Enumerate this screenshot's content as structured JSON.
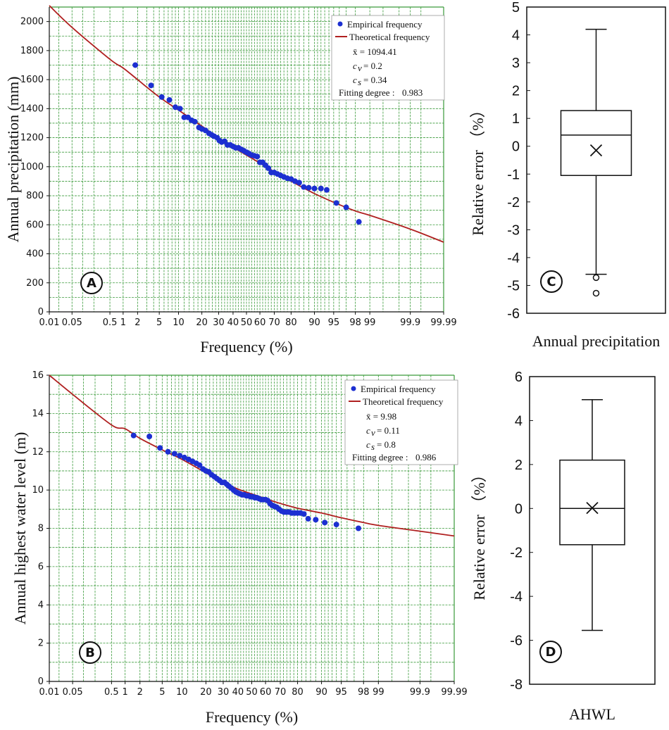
{
  "colors": {
    "grid": "#3a9a3a",
    "curve": "#b02020",
    "points": "#1c2fd1",
    "frame": "#111111"
  },
  "chart_data": [
    {
      "id": "A",
      "type": "scatter",
      "badge": "A",
      "xlabel": "Frequency (%)",
      "ylabel": "Annual precipitation (mm)",
      "x_scale": "normal-probability",
      "x_ticks": [
        0.01,
        0.05,
        0.5,
        1,
        2,
        5,
        10,
        20,
        30,
        40,
        50,
        60,
        70,
        80,
        90,
        95,
        98,
        99,
        99.9,
        99.99
      ],
      "x_tick_labels": [
        "0.01",
        "0.05",
        "0.5",
        "1",
        "2",
        "5",
        "10",
        "20",
        "30",
        "40",
        "50",
        "60",
        "70",
        "80",
        "90",
        "95",
        "98",
        "99",
        "99.9",
        "99.99"
      ],
      "ylim": [
        0,
        2100
      ],
      "y_ticks": [
        0,
        200,
        400,
        600,
        800,
        1000,
        1200,
        1400,
        1600,
        1800,
        2000
      ],
      "y_tick_labels": [
        "0",
        "200",
        "400",
        "600",
        "800",
        "1000",
        "1200",
        "1400",
        "1600",
        "1800",
        "2000"
      ],
      "legend": {
        "empirical": "Empirical frequency",
        "theoretical": "Theoretical frequency",
        "mean": "x̄ = 1094.41",
        "cv_name": "c",
        "cv_sub": "v",
        "cv_value": "= 0.2",
        "cs_name": "c",
        "cs_sub": "s",
        "cs_value": "= 0.34",
        "fit_label": "Fitting degree :",
        "fit_value": "0.983"
      },
      "series": [
        {
          "name": "Theoretical frequency",
          "kind": "line",
          "points": [
            [
              0.01,
              2110
            ],
            [
              0.05,
              1960
            ],
            [
              0.5,
              1740
            ],
            [
              1,
              1680
            ],
            [
              2,
              1600
            ],
            [
              5,
              1480
            ],
            [
              10,
              1390
            ],
            [
              20,
              1280
            ],
            [
              30,
              1200
            ],
            [
              40,
              1135
            ],
            [
              50,
              1080
            ],
            [
              60,
              1025
            ],
            [
              70,
              965
            ],
            [
              80,
              900
            ],
            [
              90,
              815
            ],
            [
              95,
              755
            ],
            [
              98,
              695
            ],
            [
              99,
              665
            ],
            [
              99.9,
              570
            ],
            [
              99.99,
              480
            ]
          ]
        },
        {
          "name": "Empirical frequency",
          "kind": "points",
          "points": [
            [
              1.8,
              1700
            ],
            [
              3.6,
              1560
            ],
            [
              5.5,
              1480
            ],
            [
              7.3,
              1460
            ],
            [
              9,
              1410
            ],
            [
              10.5,
              1400
            ],
            [
              12,
              1340
            ],
            [
              13.5,
              1340
            ],
            [
              15,
              1320
            ],
            [
              16.5,
              1310
            ],
            [
              18.5,
              1270
            ],
            [
              20,
              1260
            ],
            [
              22,
              1250
            ],
            [
              24,
              1230
            ],
            [
              25.5,
              1220
            ],
            [
              27,
              1210
            ],
            [
              29,
              1200
            ],
            [
              30.5,
              1180
            ],
            [
              32,
              1170
            ],
            [
              34,
              1175
            ],
            [
              36,
              1150
            ],
            [
              38,
              1150
            ],
            [
              40,
              1140
            ],
            [
              42,
              1130
            ],
            [
              44,
              1130
            ],
            [
              46,
              1120
            ],
            [
              48,
              1110
            ],
            [
              50,
              1100
            ],
            [
              52,
              1090
            ],
            [
              54,
              1080
            ],
            [
              56,
              1075
            ],
            [
              58,
              1070
            ],
            [
              60,
              1030
            ],
            [
              62,
              1030
            ],
            [
              64,
              1010
            ],
            [
              66,
              990
            ],
            [
              68,
              960
            ],
            [
              70,
              960
            ],
            [
              72,
              950
            ],
            [
              74,
              940
            ],
            [
              76,
              930
            ],
            [
              78,
              920
            ],
            [
              80,
              915
            ],
            [
              82,
              900
            ],
            [
              84,
              890
            ],
            [
              86,
              860
            ],
            [
              88,
              855
            ],
            [
              90,
              850
            ],
            [
              92,
              850
            ],
            [
              93.5,
              840
            ],
            [
              95.5,
              750
            ],
            [
              97,
              720
            ],
            [
              98.3,
              620
            ]
          ]
        }
      ]
    },
    {
      "id": "B",
      "type": "scatter",
      "badge": "B",
      "xlabel": "Frequency (%)",
      "ylabel": "Annual highest water level (m)",
      "x_scale": "normal-probability",
      "x_ticks": [
        0.01,
        0.05,
        0.5,
        1,
        2,
        5,
        10,
        20,
        30,
        40,
        50,
        60,
        70,
        80,
        90,
        95,
        98,
        99,
        99.9,
        99.99
      ],
      "x_tick_labels": [
        "0.01",
        "0.05",
        "0.5",
        "1",
        "2",
        "5",
        "10",
        "20",
        "30",
        "40",
        "50",
        "60",
        "70",
        "80",
        "90",
        "95",
        "98",
        "99",
        "99.9",
        "99.99"
      ],
      "ylim": [
        0,
        16
      ],
      "y_ticks": [
        0,
        2,
        4,
        6,
        8,
        10,
        12,
        14,
        16
      ],
      "y_tick_labels": [
        "0",
        "2",
        "4",
        "6",
        "8",
        "10",
        "12",
        "14",
        "16"
      ],
      "legend": {
        "empirical": "Empirical frequency",
        "theoretical": "Theoretical frequency",
        "mean": "x̄ =  9.98",
        "cv_name": "c",
        "cv_sub": "v",
        "cv_value": "= 0.11",
        "cs_name": "c",
        "cs_sub": "s",
        "cs_value": "= 0.8",
        "fit_label": "Fitting degree :",
        "fit_value": "0.986"
      },
      "series": [
        {
          "name": "Theoretical frequency",
          "kind": "line",
          "points": [
            [
              0.01,
              16.0
            ],
            [
              0.05,
              15.0
            ],
            [
              0.5,
              13.4
            ],
            [
              1,
              13.2
            ],
            [
              2,
              12.7
            ],
            [
              5,
              12.1
            ],
            [
              10,
              11.6
            ],
            [
              20,
              10.9
            ],
            [
              30,
              10.4
            ],
            [
              40,
              10.05
            ],
            [
              50,
              9.8
            ],
            [
              60,
              9.55
            ],
            [
              70,
              9.3
            ],
            [
              80,
              9.05
            ],
            [
              90,
              8.8
            ],
            [
              95,
              8.55
            ],
            [
              98,
              8.3
            ],
            [
              99,
              8.15
            ],
            [
              99.9,
              7.85
            ],
            [
              99.99,
              7.6
            ]
          ]
        },
        {
          "name": "Empirical frequency",
          "kind": "points",
          "points": [
            [
              1.5,
              12.85
            ],
            [
              3.0,
              12.8
            ],
            [
              4.6,
              12.2
            ],
            [
              6.2,
              12.0
            ],
            [
              7.8,
              11.9
            ],
            [
              9.3,
              11.8
            ],
            [
              10.8,
              11.7
            ],
            [
              12.3,
              11.6
            ],
            [
              13.8,
              11.5
            ],
            [
              15.4,
              11.4
            ],
            [
              16.9,
              11.3
            ],
            [
              18.5,
              11.1
            ],
            [
              20,
              11.0
            ],
            [
              21.5,
              10.95
            ],
            [
              23,
              10.8
            ],
            [
              24.6,
              10.7
            ],
            [
              26.1,
              10.6
            ],
            [
              27.7,
              10.5
            ],
            [
              29.2,
              10.4
            ],
            [
              30.8,
              10.4
            ],
            [
              32.3,
              10.3
            ],
            [
              33.8,
              10.2
            ],
            [
              35.4,
              10.1
            ],
            [
              36.9,
              10.0
            ],
            [
              38.5,
              9.9
            ],
            [
              40,
              9.85
            ],
            [
              41.5,
              9.8
            ],
            [
              43.1,
              9.75
            ],
            [
              44.6,
              9.75
            ],
            [
              46.2,
              9.7
            ],
            [
              47.7,
              9.7
            ],
            [
              49.2,
              9.65
            ],
            [
              50.8,
              9.65
            ],
            [
              52.3,
              9.6
            ],
            [
              53.8,
              9.6
            ],
            [
              55.4,
              9.55
            ],
            [
              56.9,
              9.5
            ],
            [
              58.5,
              9.5
            ],
            [
              60,
              9.5
            ],
            [
              61.5,
              9.45
            ],
            [
              63.1,
              9.3
            ],
            [
              64.6,
              9.2
            ],
            [
              66.2,
              9.15
            ],
            [
              67.7,
              9.1
            ],
            [
              69.2,
              9.0
            ],
            [
              70.8,
              8.9
            ],
            [
              72.3,
              8.85
            ],
            [
              73.8,
              8.85
            ],
            [
              75.4,
              8.85
            ],
            [
              76.9,
              8.8
            ],
            [
              78.5,
              8.8
            ],
            [
              80,
              8.8
            ],
            [
              81.5,
              8.8
            ],
            [
              83.1,
              8.75
            ],
            [
              85,
              8.5
            ],
            [
              88,
              8.45
            ],
            [
              91,
              8.3
            ],
            [
              94,
              8.2
            ],
            [
              97.5,
              8.0
            ]
          ]
        }
      ]
    },
    {
      "id": "C",
      "type": "box",
      "badge": "C",
      "xlabel": "Annual precipitation",
      "ylabel": "Relative error  （%）",
      "ylim": [
        -6,
        5
      ],
      "y_ticks": [
        -6,
        -5,
        -4,
        -3,
        -2,
        -1,
        0,
        1,
        2,
        3,
        4,
        5
      ],
      "y_tick_labels": [
        "-6",
        "-5",
        "-4",
        "-3",
        "-2",
        "-1",
        "0",
        "1",
        "2",
        "3",
        "4",
        "5"
      ],
      "box": {
        "min": -4.6,
        "q1": -1.05,
        "median": 0.4,
        "q3": 1.28,
        "max": 4.2,
        "mean": -0.15,
        "outliers": [
          -4.72,
          -5.28
        ]
      }
    },
    {
      "id": "D",
      "type": "box",
      "badge": "D",
      "xlabel": "AHWL",
      "ylabel": "Relative error  （%）",
      "ylim": [
        -8,
        6
      ],
      "y_ticks": [
        -8,
        -6,
        -4,
        -2,
        0,
        2,
        4,
        6
      ],
      "y_tick_labels": [
        "-8",
        "-6",
        "-4",
        "-2",
        "0",
        "2",
        "4",
        "6"
      ],
      "box": {
        "min": -5.55,
        "q1": -1.65,
        "median": 0.0,
        "q3": 2.2,
        "max": 4.95,
        "mean": 0.02,
        "outliers": []
      }
    }
  ]
}
